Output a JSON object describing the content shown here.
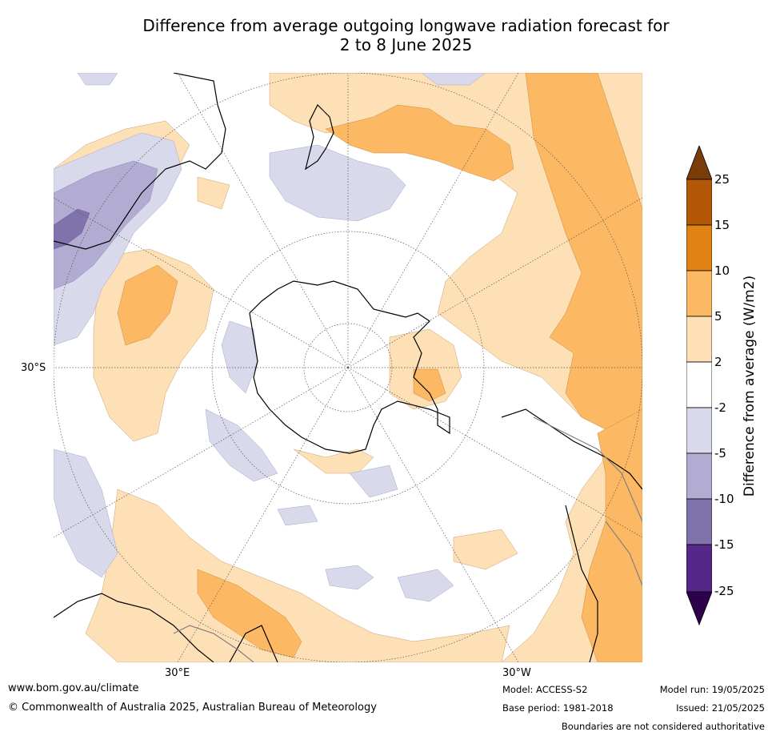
{
  "title_line1": "Difference from average outgoing longwave radiation forecast for",
  "title_line2": "2 to 8 June 2025",
  "map": {
    "projection": "south-polar-stereographic",
    "lat_label": "30°S",
    "lon_labels": [
      "30°E",
      "30°W"
    ],
    "colors": {
      "coast": "#000000",
      "border": "#808080",
      "graticule": "#555555"
    }
  },
  "colorbar": {
    "title": "Difference from average (W/m2)",
    "ticks": [
      "25",
      "15",
      "10",
      "5",
      "2",
      "-2",
      "-5",
      "-10",
      "-15",
      "-25"
    ],
    "bins": [
      {
        "range": ">25",
        "color": "#7a3d0a"
      },
      {
        "range": "15 to 25",
        "color": "#b35806"
      },
      {
        "range": "10 to 15",
        "color": "#e08214"
      },
      {
        "range": "5 to 10",
        "color": "#fdb863"
      },
      {
        "range": "2 to 5",
        "color": "#fee0b6"
      },
      {
        "range": "-2 to 2",
        "color": "#ffffff"
      },
      {
        "range": "-5 to -2",
        "color": "#d8daeb"
      },
      {
        "range": "-10 to -5",
        "color": "#b2abd2"
      },
      {
        "range": "-15 to -10",
        "color": "#8073ac"
      },
      {
        "range": "-25 to -15",
        "color": "#542788"
      },
      {
        "range": "<-25",
        "color": "#2d004b"
      }
    ]
  },
  "footer": {
    "website": "www.bom.gov.au/climate",
    "copyright": "© Commonwealth of Australia 2025, Australian Bureau of Meteorology",
    "model": "Model: ACCESS-S2",
    "base_period": "Base period: 1981-2018",
    "model_run": "Model run: 19/05/2025",
    "issued": "Issued: 21/05/2025",
    "disclaimer": "Boundaries are not considered authoritative"
  }
}
